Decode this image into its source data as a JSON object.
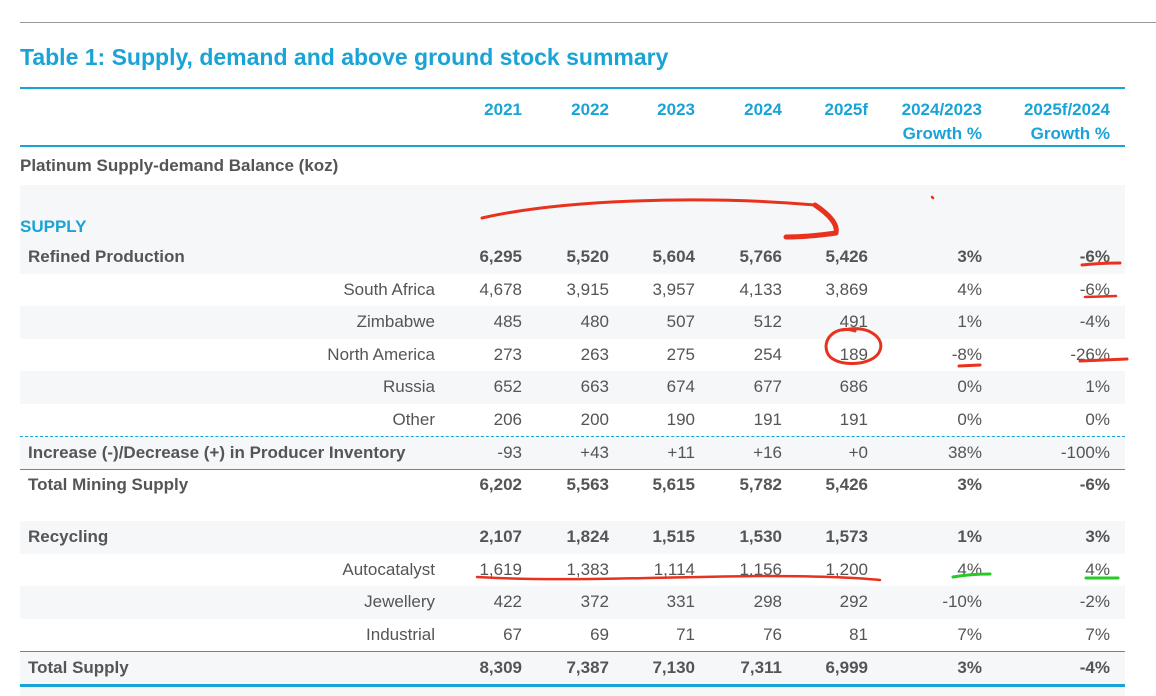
{
  "title": "Table 1: Supply, demand and above ground stock summary",
  "columns": [
    {
      "line1": "2021",
      "line2": ""
    },
    {
      "line1": "2022",
      "line2": ""
    },
    {
      "line1": "2023",
      "line2": ""
    },
    {
      "line1": "2024",
      "line2": ""
    },
    {
      "line1": "2025f",
      "line2": ""
    },
    {
      "line1": "2024/2023",
      "line2": "Growth %"
    },
    {
      "line1": "2025f/2024",
      "line2": "Growth %"
    }
  ],
  "section_title": "Platinum Supply-demand Balance (koz)",
  "supply_label": "SUPPLY",
  "rows": [
    {
      "label": "Refined Production",
      "indent": false,
      "bold": true,
      "values": [
        "6,295",
        "5,520",
        "5,604",
        "5,766",
        "5,426",
        "3%",
        "-6%"
      ]
    },
    {
      "label": "South Africa",
      "indent": true,
      "bold": false,
      "values": [
        "4,678",
        "3,915",
        "3,957",
        "4,133",
        "3,869",
        "4%",
        "-6%"
      ]
    },
    {
      "label": "Zimbabwe",
      "indent": true,
      "bold": false,
      "values": [
        "485",
        "480",
        "507",
        "512",
        "491",
        "1%",
        "-4%"
      ]
    },
    {
      "label": "North America",
      "indent": true,
      "bold": false,
      "values": [
        "273",
        "263",
        "275",
        "254",
        "189",
        "-8%",
        "-26%"
      ]
    },
    {
      "label": "Russia",
      "indent": true,
      "bold": false,
      "values": [
        "652",
        "663",
        "674",
        "677",
        "686",
        "0%",
        "1%"
      ]
    },
    {
      "label": "Other",
      "indent": true,
      "bold": false,
      "values": [
        "206",
        "200",
        "190",
        "191",
        "191",
        "0%",
        "0%"
      ]
    },
    {
      "label": "Increase (-)/Decrease (+) in Producer Inventory",
      "indent": false,
      "bold": false,
      "labelBold": true,
      "values": [
        "-93",
        "+43",
        "+11",
        "+16",
        "+0",
        "38%",
        "-100%"
      ]
    },
    {
      "label": "Total Mining Supply",
      "indent": false,
      "bold": true,
      "values": [
        "6,202",
        "5,563",
        "5,615",
        "5,782",
        "5,426",
        "3%",
        "-6%"
      ]
    },
    {
      "label": "Recycling",
      "indent": false,
      "bold": true,
      "values": [
        "2,107",
        "1,824",
        "1,515",
        "1,530",
        "1,573",
        "1%",
        "3%"
      ]
    },
    {
      "label": "Autocatalyst",
      "indent": true,
      "bold": false,
      "values": [
        "1,619",
        "1,383",
        "1,114",
        "1,156",
        "1,200",
        "4%",
        "4%"
      ]
    },
    {
      "label": "Jewellery",
      "indent": true,
      "bold": false,
      "values": [
        "422",
        "372",
        "331",
        "298",
        "292",
        "-10%",
        "-2%"
      ]
    },
    {
      "label": "Industrial",
      "indent": true,
      "bold": false,
      "values": [
        "67",
        "69",
        "71",
        "76",
        "81",
        "7%",
        "7%"
      ]
    },
    {
      "label": "Total Supply",
      "indent": false,
      "bold": true,
      "values": [
        "8,309",
        "7,387",
        "7,130",
        "7,311",
        "6,999",
        "3%",
        "-4%"
      ]
    }
  ],
  "annotation_colors": {
    "red": "#e8321e",
    "green": "#22cc22"
  }
}
